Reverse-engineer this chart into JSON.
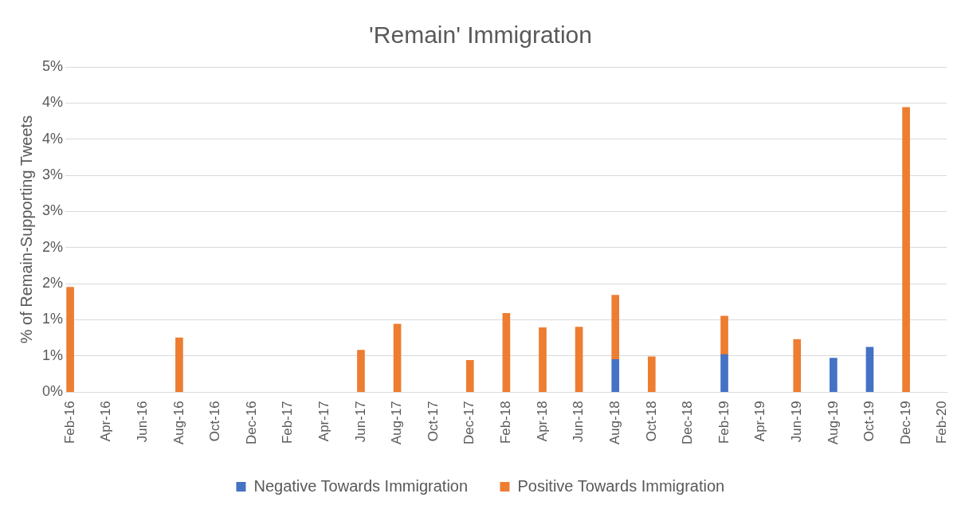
{
  "chart_data": {
    "type": "bar",
    "title": "'Remain' Immigration",
    "ylabel": "% of Remain-Supporting Tweets",
    "stacked": true,
    "x": [
      "2016-02",
      "2016-08",
      "2017-06",
      "2017-08",
      "2017-12",
      "2018-02",
      "2018-04",
      "2018-06",
      "2018-08",
      "2018-10",
      "2019-02",
      "2019-06",
      "2019-08",
      "2019-10",
      "2019-12"
    ],
    "series": [
      {
        "name": "Negative Towards Immigration",
        "color": "#4472c4",
        "values": [
          null,
          null,
          null,
          null,
          null,
          null,
          null,
          null,
          0.45,
          null,
          0.52,
          null,
          0.47,
          0.62,
          null
        ]
      },
      {
        "name": "Positive Towards Immigration",
        "color": "#ed7d31",
        "values": [
          1.45,
          0.75,
          0.58,
          0.94,
          0.44,
          1.09,
          0.89,
          0.9,
          0.89,
          0.49,
          0.53,
          0.73,
          null,
          null,
          3.94
        ]
      }
    ],
    "xlim": [
      "2016-01-23",
      "2020-02-08"
    ],
    "xticks": [
      {
        "value": "2016-02",
        "label": "Feb-16"
      },
      {
        "value": "2016-04",
        "label": "Apr-16"
      },
      {
        "value": "2016-06",
        "label": "Jun-16"
      },
      {
        "value": "2016-08",
        "label": "Aug-16"
      },
      {
        "value": "2016-10",
        "label": "Oct-16"
      },
      {
        "value": "2016-12",
        "label": "Dec-16"
      },
      {
        "value": "2017-02",
        "label": "Feb-17"
      },
      {
        "value": "2017-04",
        "label": "Apr-17"
      },
      {
        "value": "2017-06",
        "label": "Jun-17"
      },
      {
        "value": "2017-08",
        "label": "Aug-17"
      },
      {
        "value": "2017-10",
        "label": "Oct-17"
      },
      {
        "value": "2017-12",
        "label": "Dec-17"
      },
      {
        "value": "2018-02",
        "label": "Feb-18"
      },
      {
        "value": "2018-04",
        "label": "Apr-18"
      },
      {
        "value": "2018-06",
        "label": "Jun-18"
      },
      {
        "value": "2018-08",
        "label": "Aug-18"
      },
      {
        "value": "2018-10",
        "label": "Oct-18"
      },
      {
        "value": "2018-12",
        "label": "Dec-18"
      },
      {
        "value": "2019-02",
        "label": "Feb-19"
      },
      {
        "value": "2019-04",
        "label": "Apr-19"
      },
      {
        "value": "2019-06",
        "label": "Jun-19"
      },
      {
        "value": "2019-08",
        "label": "Aug-19"
      },
      {
        "value": "2019-10",
        "label": "Oct-19"
      },
      {
        "value": "2019-12",
        "label": "Dec-19"
      },
      {
        "value": "2020-02",
        "label": "Feb-20"
      }
    ],
    "ylim": [
      0,
      4.5
    ],
    "yticks": [
      {
        "value": 0,
        "label": "0%"
      },
      {
        "value": 0.5,
        "label": "1%"
      },
      {
        "value": 1,
        "label": "1%"
      },
      {
        "value": 1.5,
        "label": "2%"
      },
      {
        "value": 2,
        "label": "2%"
      },
      {
        "value": 2.5,
        "label": "3%"
      },
      {
        "value": 3,
        "label": "3%"
      },
      {
        "value": 3.5,
        "label": "4%"
      },
      {
        "value": 4,
        "label": "4%"
      },
      {
        "value": 4.5,
        "label": "5%"
      }
    ],
    "grid": "y",
    "legend": "bottom"
  }
}
